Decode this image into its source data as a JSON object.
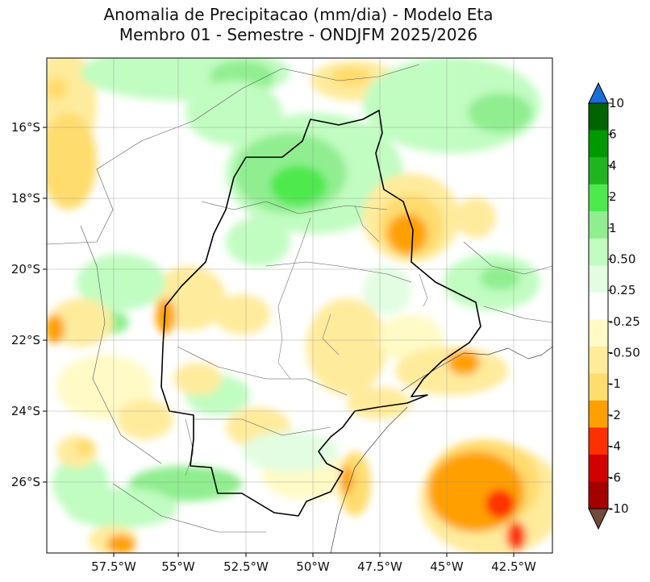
{
  "title": {
    "line1": "Anomalia de Precipitacao (mm/dia) - Modelo Eta",
    "line2": "Membro 01 - Semestre - ONDJFM 2025/2026"
  },
  "axes": {
    "lat_ticks": [
      "16°S",
      "18°S",
      "20°S",
      "22°S",
      "24°S",
      "26°S"
    ],
    "lon_ticks": [
      "57.5°W",
      "55°W",
      "52.5°W",
      "50°W",
      "47.5°W",
      "45°W",
      "42.5°W"
    ]
  },
  "colorbar": {
    "labels": [
      "10",
      "6",
      "4",
      "2",
      "1",
      "0.50",
      "0.25",
      "-0.25",
      "-0.50",
      "-1",
      "-2",
      "-4",
      "-6",
      "-10"
    ],
    "colors": [
      "#006400",
      "#009a00",
      "#21b421",
      "#4ee94e",
      "#90ee90",
      "#c1fcc1",
      "#e2fde2",
      "#ffffff",
      "#fffac6",
      "#ffeb9c",
      "#ffdc6e",
      "#ffa000",
      "#ff3000",
      "#d20000",
      "#a50000"
    ],
    "extend_max_color": "#1a6dd6",
    "extend_min_color": "#704a3a"
  },
  "map_colors": {
    "white": "#ffffff",
    "pale_green": "#e2fde2",
    "light_green": "#c1fcc1",
    "green": "#90ee90",
    "mid_green": "#4ee94e",
    "pale_yellow": "#fffac6",
    "yellow": "#ffeb9c",
    "deep_yellow": "#ffdc6e",
    "orange": "#ffa000",
    "red": "#ff3000"
  }
}
